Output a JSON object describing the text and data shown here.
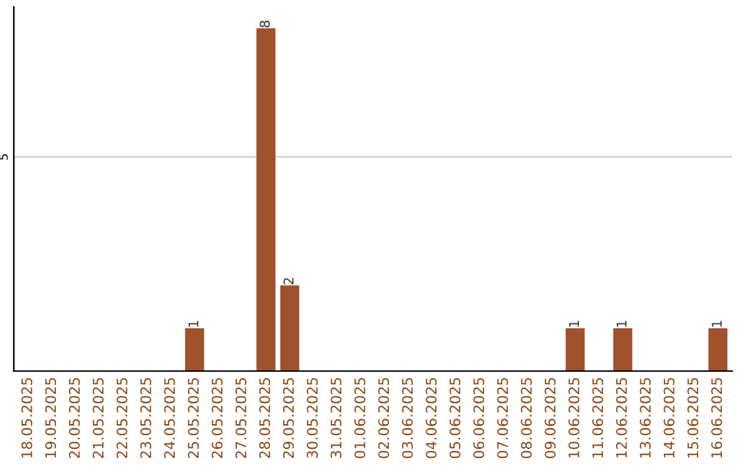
{
  "chart_data": {
    "type": "bar",
    "categories": [
      "18.05.2025",
      "19.05.2025",
      "20.05.2025",
      "21.05.2025",
      "22.05.2025",
      "23.05.2025",
      "24.05.2025",
      "25.05.2025",
      "26.05.2025",
      "27.05.2025",
      "28.05.2025",
      "29.05.2025",
      "30.05.2025",
      "31.05.2025",
      "01.06.2025",
      "02.06.2025",
      "03.06.2025",
      "04.06.2025",
      "05.06.2025",
      "06.06.2025",
      "07.06.2025",
      "08.06.2025",
      "09.06.2025",
      "10.06.2025",
      "11.06.2025",
      "12.06.2025",
      "13.06.2025",
      "14.06.2025",
      "15.06.2025",
      "16.06.2025"
    ],
    "values": [
      0,
      0,
      0,
      0,
      0,
      0,
      0,
      1,
      0,
      0,
      8,
      2,
      0,
      0,
      0,
      0,
      0,
      0,
      0,
      0,
      0,
      0,
      0,
      1,
      0,
      1,
      0,
      0,
      0,
      1
    ],
    "value_labels": [
      null,
      null,
      null,
      null,
      null,
      null,
      null,
      "1",
      null,
      null,
      "8",
      "2",
      null,
      null,
      null,
      null,
      null,
      null,
      null,
      null,
      null,
      null,
      null,
      "1",
      null,
      "1",
      null,
      null,
      null,
      "1"
    ],
    "color": "#a0522d",
    "ylim": [
      0,
      8.5
    ],
    "yticks": [
      5
    ],
    "grid": "y"
  }
}
